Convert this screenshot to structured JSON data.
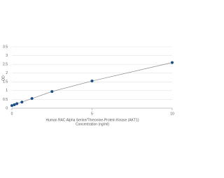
{
  "chart_data": {
    "type": "scatter-line",
    "x": [
      0,
      0.156,
      0.312,
      0.625,
      1.25,
      2.5,
      5,
      10
    ],
    "values": [
      0.15,
      0.2,
      0.26,
      0.35,
      0.55,
      0.95,
      1.55,
      2.6
    ],
    "color": "#1d4f86",
    "line_color": "#8a8a8a",
    "xlim": [
      0,
      10
    ],
    "xticks": [
      0,
      5,
      10
    ],
    "ylim": [
      0,
      3.5
    ],
    "yticks": [
      0,
      0.5,
      1,
      1.5,
      2,
      2.5,
      3,
      3.5
    ],
    "grid": true,
    "ylabel": "OD",
    "xlabel": [
      "Human RAC Alpha Serine/Threonine-Protein Kinase (AKT1)",
      "Concentration (ng/ml)"
    ]
  }
}
